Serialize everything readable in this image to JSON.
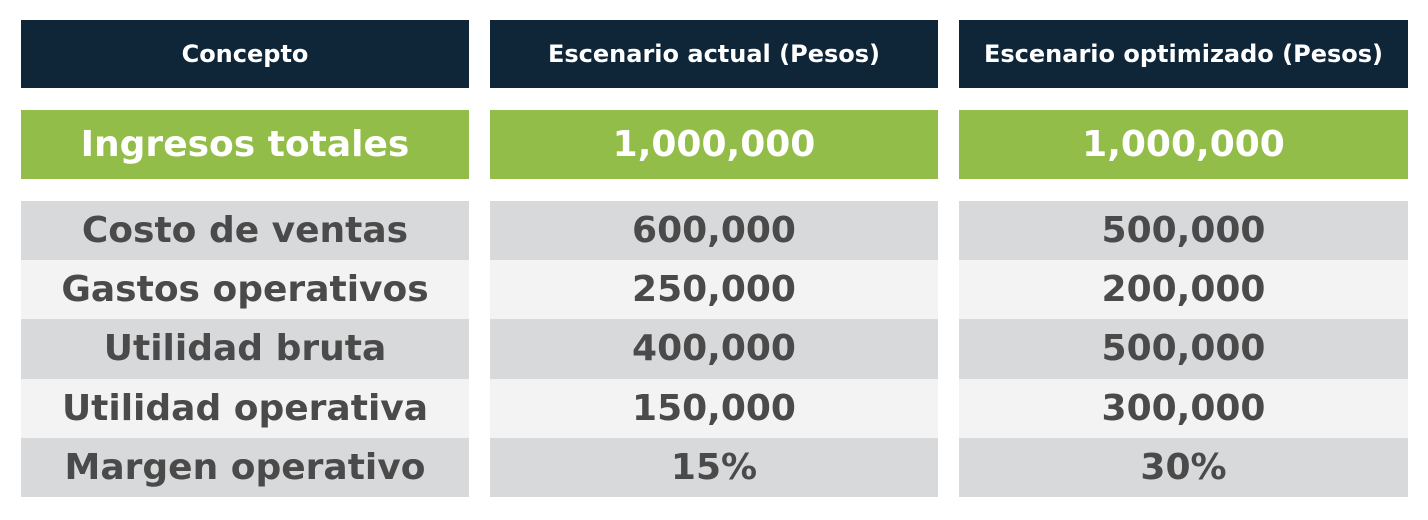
{
  "headers": [
    "Concepto",
    "Escenario actual (Pesos)",
    "Escenario optimizado (Pesos)"
  ],
  "total_row": {
    "label": "Ingresos totales",
    "actual": "1,000,000",
    "optimizado": "1,000,000"
  },
  "rows": [
    {
      "label": "Costo de ventas",
      "actual": "600,000",
      "optimizado": "500,000"
    },
    {
      "label": "Gastos operativos",
      "actual": "250,000",
      "optimizado": "200,000"
    },
    {
      "label": "Utilidad bruta",
      "actual": "400,000",
      "optimizado": "500,000"
    },
    {
      "label": "Utilidad operativa",
      "actual": "150,000",
      "optimizado": "300,000"
    },
    {
      "label": "Margen operativo",
      "actual": "15%",
      "optimizado": "30%"
    }
  ],
  "colors": {
    "header": "#0f2538",
    "total": "#92bd48",
    "row_dark": "#d8d9db",
    "row_light": "#f3f3f3",
    "text": "#4a4a4a"
  }
}
